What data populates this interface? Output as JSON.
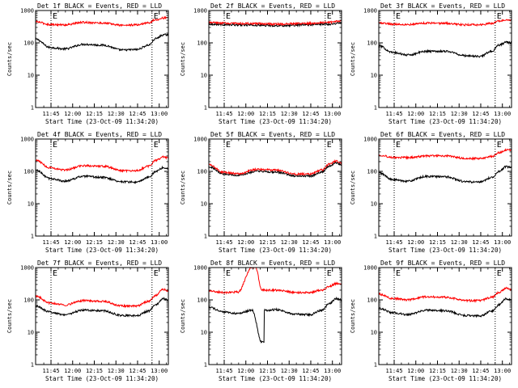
{
  "chart_data": [
    {
      "type": "line",
      "detector": "1f",
      "title": "Det 1f BLACK = Events, RED = LLD",
      "xlabel": "Start Time (23-Oct-09 11:34:20)",
      "ylabel": "Counts/sec",
      "xlim": [
        0,
        5520
      ],
      "ylim": [
        1,
        1000
      ],
      "yscale": "log",
      "x_ticks": [
        "11:45",
        "12:00",
        "12:15",
        "12:30",
        "12:45",
        "13:00"
      ],
      "y_ticks": [
        "1",
        "10",
        "100",
        "1000"
      ],
      "markers": [
        "E",
        "E"
      ],
      "marker_times": [
        640,
        4840
      ],
      "series": [
        {
          "name": "Events",
          "color": "#000000",
          "x": [
            0,
            600,
            1200,
            2000,
            2800,
            3600,
            4200,
            4700,
            5000,
            5300,
            5520
          ],
          "values": [
            130,
            72,
            65,
            90,
            85,
            60,
            62,
            85,
            135,
            175,
            180
          ]
        },
        {
          "name": "LLD",
          "color": "#ff0000",
          "x": [
            0,
            600,
            1200,
            2000,
            2800,
            3600,
            4200,
            4700,
            5000,
            5300,
            5520
          ],
          "values": [
            450,
            370,
            360,
            430,
            410,
            350,
            360,
            420,
            520,
            590,
            600
          ]
        }
      ]
    },
    {
      "type": "line",
      "detector": "2f",
      "title": "Det 2f BLACK = Events, RED = LLD",
      "xlabel": "Start Time (23-Oct-09 11:34:20)",
      "ylabel": "Counts/sec",
      "xlim": [
        0,
        5520
      ],
      "ylim": [
        1,
        1000
      ],
      "yscale": "log",
      "x_ticks": [
        "11:45",
        "12:00",
        "12:15",
        "12:30",
        "12:45",
        "13:00"
      ],
      "y_ticks": [
        "1",
        "10",
        "100",
        "1000"
      ],
      "markers": [
        "E",
        "E"
      ],
      "marker_times": [
        640,
        4840
      ],
      "series": [
        {
          "name": "Events",
          "color": "#000000",
          "x": [
            0,
            1000,
            2000,
            3000,
            4000,
            5000,
            5520
          ],
          "values": [
            380,
            360,
            350,
            340,
            360,
            380,
            420
          ]
        },
        {
          "name": "LLD",
          "color": "#ff0000",
          "x": [
            0,
            1000,
            2000,
            3000,
            4000,
            5000,
            5520
          ],
          "values": [
            420,
            400,
            390,
            380,
            400,
            430,
            480
          ]
        }
      ]
    },
    {
      "type": "line",
      "detector": "3f",
      "title": "Det 3f BLACK = Events, RED = LLD",
      "xlabel": "Start Time (23-Oct-09 11:34:20)",
      "ylabel": "Counts/sec",
      "xlim": [
        0,
        5520
      ],
      "ylim": [
        1,
        1000
      ],
      "yscale": "log",
      "x_ticks": [
        "11:45",
        "12:00",
        "12:15",
        "12:30",
        "12:45",
        "13:00"
      ],
      "y_ticks": [
        "1",
        "10",
        "100",
        "1000"
      ],
      "markers": [
        "E",
        "E"
      ],
      "marker_times": [
        640,
        4840
      ],
      "series": [
        {
          "name": "Events",
          "color": "#000000",
          "x": [
            0,
            600,
            1200,
            2000,
            2800,
            3600,
            4200,
            4700,
            5000,
            5300,
            5520
          ],
          "values": [
            80,
            50,
            42,
            55,
            55,
            40,
            38,
            55,
            85,
            105,
            100
          ]
        },
        {
          "name": "LLD",
          "color": "#ff0000",
          "x": [
            0,
            600,
            1200,
            2000,
            2800,
            3600,
            4200,
            4700,
            5000,
            5300,
            5520
          ],
          "values": [
            420,
            380,
            370,
            410,
            400,
            360,
            360,
            400,
            480,
            530,
            500
          ]
        }
      ]
    },
    {
      "type": "line",
      "detector": "4f",
      "title": "Det 4f BLACK = Events, RED = LLD",
      "xlabel": "Start Time (23-Oct-09 11:34:20)",
      "ylabel": "Counts/sec",
      "xlim": [
        0,
        5520
      ],
      "ylim": [
        1,
        1000
      ],
      "yscale": "log",
      "x_ticks": [
        "11:45",
        "12:00",
        "12:15",
        "12:30",
        "12:45",
        "13:00"
      ],
      "y_ticks": [
        "1",
        "10",
        "100",
        "1000"
      ],
      "markers": [
        "E",
        "E"
      ],
      "marker_times": [
        640,
        4840
      ],
      "series": [
        {
          "name": "Events",
          "color": "#000000",
          "x": [
            0,
            600,
            1200,
            2000,
            2800,
            3600,
            4200,
            4700,
            5000,
            5300,
            5520
          ],
          "values": [
            110,
            60,
            50,
            70,
            65,
            48,
            46,
            65,
            100,
            130,
            120
          ]
        },
        {
          "name": "LLD",
          "color": "#ff0000",
          "x": [
            0,
            600,
            1200,
            2000,
            2800,
            3600,
            4200,
            4700,
            5000,
            5300,
            5520
          ],
          "values": [
            220,
            130,
            110,
            150,
            145,
            105,
            105,
            145,
            220,
            280,
            260
          ]
        }
      ]
    },
    {
      "type": "line",
      "detector": "5f",
      "title": "Det 5f BLACK = Events, RED = LLD",
      "xlabel": "Start Time (23-Oct-09 11:34:20)",
      "ylabel": "Counts/sec",
      "xlim": [
        0,
        5520
      ],
      "ylim": [
        1,
        1000
      ],
      "yscale": "log",
      "x_ticks": [
        "11:45",
        "12:00",
        "12:15",
        "12:30",
        "12:45",
        "13:00"
      ],
      "y_ticks": [
        "1",
        "10",
        "100",
        "1000"
      ],
      "markers": [
        "E",
        "E"
      ],
      "marker_times": [
        640,
        4840
      ],
      "series": [
        {
          "name": "Events",
          "color": "#000000",
          "x": [
            0,
            600,
            1200,
            2000,
            2800,
            3600,
            4200,
            4700,
            5000,
            5300,
            5520
          ],
          "values": [
            140,
            85,
            75,
            100,
            95,
            72,
            72,
            95,
            145,
            185,
            160
          ]
        },
        {
          "name": "LLD",
          "color": "#ff0000",
          "x": [
            0,
            600,
            1200,
            2000,
            2800,
            3600,
            4200,
            4700,
            5000,
            5300,
            5520
          ],
          "values": [
            160,
            95,
            85,
            115,
            110,
            82,
            82,
            110,
            165,
            210,
            180
          ]
        }
      ]
    },
    {
      "type": "line",
      "detector": "6f",
      "title": "Det 6f BLACK = Events, RED = LLD",
      "xlabel": "Start Time (23-Oct-09 11:34:20)",
      "ylabel": "Counts/sec",
      "xlim": [
        0,
        5520
      ],
      "ylim": [
        1,
        1000
      ],
      "yscale": "log",
      "x_ticks": [
        "11:45",
        "12:00",
        "12:15",
        "12:30",
        "12:45",
        "13:00"
      ],
      "y_ticks": [
        "1",
        "10",
        "100",
        "1000"
      ],
      "markers": [
        "E",
        "E"
      ],
      "marker_times": [
        640,
        4840
      ],
      "series": [
        {
          "name": "Events",
          "color": "#000000",
          "x": [
            0,
            600,
            1200,
            2000,
            2800,
            3600,
            4200,
            4700,
            5000,
            5300,
            5520
          ],
          "values": [
            90,
            55,
            50,
            70,
            68,
            48,
            46,
            65,
            100,
            140,
            130
          ]
        },
        {
          "name": "LLD",
          "color": "#ff0000",
          "x": [
            0,
            600,
            1200,
            2000,
            2800,
            3600,
            4200,
            4700,
            5000,
            5300,
            5520
          ],
          "values": [
            320,
            270,
            265,
            300,
            300,
            250,
            250,
            290,
            380,
            460,
            440
          ]
        }
      ]
    },
    {
      "type": "line",
      "detector": "7f",
      "title": "Det 7f BLACK = Events, RED = LLD",
      "xlabel": "Start Time (23-Oct-09 11:34:20)",
      "ylabel": "Counts/sec",
      "xlim": [
        0,
        5520
      ],
      "ylim": [
        1,
        1000
      ],
      "yscale": "log",
      "x_ticks": [
        "11:45",
        "12:00",
        "12:15",
        "12:30",
        "12:45",
        "13:00"
      ],
      "y_ticks": [
        "1",
        "10",
        "100",
        "1000"
      ],
      "markers": [
        "E",
        "E"
      ],
      "marker_times": [
        640,
        4840
      ],
      "series": [
        {
          "name": "Events",
          "color": "#000000",
          "x": [
            0,
            600,
            1200,
            2000,
            2800,
            3600,
            4200,
            4700,
            5000,
            5300,
            5520
          ],
          "values": [
            65,
            42,
            35,
            48,
            46,
            33,
            32,
            45,
            70,
            110,
            100
          ]
        },
        {
          "name": "LLD",
          "color": "#ff0000",
          "x": [
            0,
            600,
            1200,
            2000,
            2800,
            3600,
            4200,
            4700,
            5000,
            5300,
            5520
          ],
          "values": [
            130,
            80,
            70,
            95,
            90,
            65,
            65,
            90,
            140,
            210,
            190
          ]
        }
      ]
    },
    {
      "type": "line",
      "detector": "8f",
      "title": "Det 8f BLACK = Events, RED = LLD",
      "xlabel": "Start Time (23-Oct-09 11:34:20)",
      "ylabel": "Counts/sec",
      "xlim": [
        0,
        5520
      ],
      "ylim": [
        1,
        1000
      ],
      "yscale": "log",
      "x_ticks": [
        "11:45",
        "12:00",
        "12:15",
        "12:30",
        "12:45",
        "13:00"
      ],
      "y_ticks": [
        "1",
        "10",
        "100",
        "1000"
      ],
      "markers": [
        "E",
        "E"
      ],
      "marker_times": [
        640,
        4840
      ],
      "series": [
        {
          "name": "Events",
          "color": "#000000",
          "x": [
            0,
            600,
            1200,
            1800,
            2200,
            2400,
            2800,
            3600,
            4200,
            4700,
            5000,
            5300,
            5520
          ],
          "values": [
            60,
            42,
            38,
            48,
            5,
            48,
            50,
            36,
            35,
            48,
            75,
            110,
            100
          ]
        },
        {
          "name": "LLD",
          "color": "#ff0000",
          "x": [
            0,
            600,
            1200,
            1800,
            1950,
            2200,
            2400,
            2800,
            3600,
            4200,
            4700,
            5000,
            5300,
            5520
          ],
          "values": [
            190,
            170,
            175,
            1000,
            1000,
            200,
            200,
            200,
            170,
            170,
            200,
            260,
            320,
            290
          ]
        }
      ]
    },
    {
      "type": "line",
      "detector": "9f",
      "title": "Det 9f BLACK = Events, RED = LLD",
      "xlabel": "Start Time (23-Oct-09 11:34:20)",
      "ylabel": "Counts/sec",
      "xlim": [
        0,
        5520
      ],
      "ylim": [
        1,
        1000
      ],
      "yscale": "log",
      "x_ticks": [
        "11:45",
        "12:00",
        "12:15",
        "12:30",
        "12:45",
        "13:00"
      ],
      "y_ticks": [
        "1",
        "10",
        "100",
        "1000"
      ],
      "markers": [
        "E",
        "E"
      ],
      "marker_times": [
        640,
        4840
      ],
      "series": [
        {
          "name": "Events",
          "color": "#000000",
          "x": [
            0,
            600,
            1200,
            2000,
            2800,
            3600,
            4200,
            4700,
            5000,
            5300,
            5520
          ],
          "values": [
            55,
            40,
            35,
            48,
            46,
            33,
            32,
            45,
            70,
            110,
            100
          ]
        },
        {
          "name": "LLD",
          "color": "#ff0000",
          "x": [
            0,
            600,
            1200,
            2000,
            2800,
            3600,
            4200,
            4700,
            5000,
            5300,
            5520
          ],
          "values": [
            150,
            110,
            100,
            125,
            120,
            95,
            95,
            120,
            170,
            230,
            210
          ]
        }
      ]
    }
  ]
}
